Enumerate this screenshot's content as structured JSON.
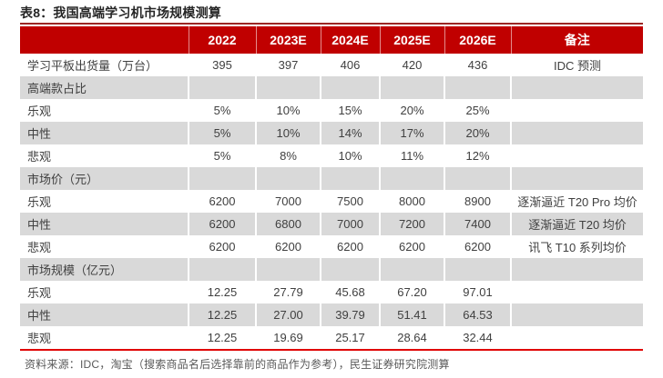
{
  "title": "表8：我国高端学习机市场规模测算",
  "colors": {
    "header_bg": "#c00000",
    "title_underline": "#9c2624",
    "row_stripe": "#d9d9d9",
    "bottom_rule": "#e00000",
    "body_text": "#404040",
    "footer_text": "#595959"
  },
  "table": {
    "columns": [
      "",
      "2022",
      "2023E",
      "2024E",
      "2025E",
      "2026E",
      "备注"
    ],
    "rows": [
      {
        "type": "data",
        "label": "学习平板出货量（万台）",
        "values": [
          "395",
          "397",
          "406",
          "420",
          "436"
        ],
        "note": "IDC 预测"
      },
      {
        "type": "section",
        "label": "高端款占比",
        "values": [
          "",
          "",
          "",
          "",
          ""
        ],
        "note": ""
      },
      {
        "type": "data",
        "label": "乐观",
        "values": [
          "5%",
          "10%",
          "15%",
          "20%",
          "25%"
        ],
        "note": ""
      },
      {
        "type": "data",
        "label": "中性",
        "values": [
          "5%",
          "10%",
          "14%",
          "17%",
          "20%"
        ],
        "note": ""
      },
      {
        "type": "data",
        "label": "悲观",
        "values": [
          "5%",
          "8%",
          "10%",
          "11%",
          "12%"
        ],
        "note": ""
      },
      {
        "type": "section",
        "label": "市场价（元）",
        "values": [
          "",
          "",
          "",
          "",
          ""
        ],
        "note": ""
      },
      {
        "type": "data",
        "label": "乐观",
        "values": [
          "6200",
          "7000",
          "7500",
          "8000",
          "8900"
        ],
        "note": "逐渐逼近 T20 Pro 均价"
      },
      {
        "type": "data",
        "label": "中性",
        "values": [
          "6200",
          "6800",
          "7000",
          "7200",
          "7400"
        ],
        "note": "逐渐逼近 T20 均价"
      },
      {
        "type": "data",
        "label": "悲观",
        "values": [
          "6200",
          "6200",
          "6200",
          "6200",
          "6200"
        ],
        "note": "讯飞 T10 系列均价"
      },
      {
        "type": "section",
        "label": "市场规模（亿元）",
        "values": [
          "",
          "",
          "",
          "",
          ""
        ],
        "note": ""
      },
      {
        "type": "data",
        "label": "乐观",
        "values": [
          "12.25",
          "27.79",
          "45.68",
          "67.20",
          "97.01"
        ],
        "note": ""
      },
      {
        "type": "data",
        "label": "中性",
        "values": [
          "12.25",
          "27.00",
          "39.79",
          "51.41",
          "64.53"
        ],
        "note": ""
      },
      {
        "type": "data",
        "label": "悲观",
        "values": [
          "12.25",
          "19.69",
          "25.17",
          "28.64",
          "32.44"
        ],
        "note": ""
      }
    ]
  },
  "footer": "资料来源：IDC，淘宝（搜索商品名后选择靠前的商品作为参考），民生证券研究院测算"
}
